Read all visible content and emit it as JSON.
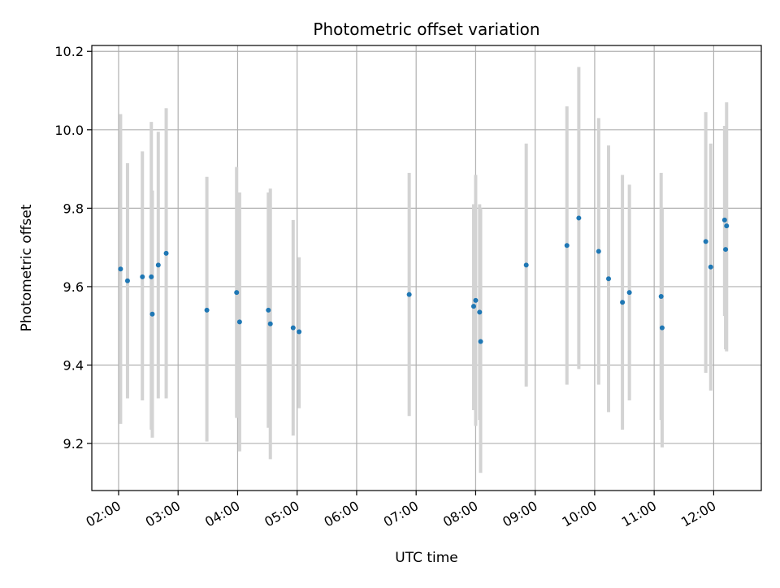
{
  "chart_data": {
    "type": "scatter",
    "title": "Photometric offset variation",
    "xlabel": "UTC time",
    "ylabel": "Photometric offset",
    "x_range": [
      "01:33",
      "12:48"
    ],
    "ylim": [
      9.08,
      10.215
    ],
    "x_ticks": [
      "02:00",
      "03:00",
      "04:00",
      "05:00",
      "06:00",
      "07:00",
      "08:00",
      "09:00",
      "10:00",
      "11:00",
      "12:00"
    ],
    "y_ticks": [
      "9.2",
      "9.4",
      "9.6",
      "9.8",
      "10.0",
      "10.2"
    ],
    "grid": true,
    "colors": {
      "point": "#1f77b4",
      "errorbar": "#d3d3d3",
      "grid": "#b0b0b0"
    },
    "points": [
      {
        "t": "02:02",
        "y": 9.645,
        "lo": 9.25,
        "hi": 10.04
      },
      {
        "t": "02:09",
        "y": 9.615,
        "lo": 9.315,
        "hi": 9.915
      },
      {
        "t": "02:24",
        "y": 9.625,
        "lo": 9.31,
        "hi": 9.945
      },
      {
        "t": "02:33",
        "y": 9.625,
        "lo": 9.235,
        "hi": 10.02
      },
      {
        "t": "02:34",
        "y": 9.53,
        "lo": 9.215,
        "hi": 9.845
      },
      {
        "t": "02:40",
        "y": 9.655,
        "lo": 9.315,
        "hi": 9.995
      },
      {
        "t": "02:48",
        "y": 9.685,
        "lo": 9.315,
        "hi": 10.055
      },
      {
        "t": "03:29",
        "y": 9.54,
        "lo": 9.205,
        "hi": 9.88
      },
      {
        "t": "03:59",
        "y": 9.585,
        "lo": 9.265,
        "hi": 9.905
      },
      {
        "t": "04:02",
        "y": 9.51,
        "lo": 9.18,
        "hi": 9.84
      },
      {
        "t": "04:31",
        "y": 9.54,
        "lo": 9.24,
        "hi": 9.84
      },
      {
        "t": "04:33",
        "y": 9.505,
        "lo": 9.16,
        "hi": 9.85
      },
      {
        "t": "04:56",
        "y": 9.495,
        "lo": 9.22,
        "hi": 9.77
      },
      {
        "t": "05:02",
        "y": 9.485,
        "lo": 9.29,
        "hi": 9.675
      },
      {
        "t": "06:53",
        "y": 9.58,
        "lo": 9.27,
        "hi": 9.89
      },
      {
        "t": "07:58",
        "y": 9.55,
        "lo": 9.285,
        "hi": 9.81
      },
      {
        "t": "08:00",
        "y": 9.565,
        "lo": 9.245,
        "hi": 9.885
      },
      {
        "t": "08:04",
        "y": 9.535,
        "lo": 9.26,
        "hi": 9.81
      },
      {
        "t": "08:05",
        "y": 9.46,
        "lo": 9.125,
        "hi": 9.8
      },
      {
        "t": "08:51",
        "y": 9.655,
        "lo": 9.345,
        "hi": 9.965
      },
      {
        "t": "09:32",
        "y": 9.705,
        "lo": 9.35,
        "hi": 10.06
      },
      {
        "t": "09:44",
        "y": 9.775,
        "lo": 9.39,
        "hi": 10.16
      },
      {
        "t": "10:04",
        "y": 9.69,
        "lo": 9.35,
        "hi": 10.03
      },
      {
        "t": "10:14",
        "y": 9.62,
        "lo": 9.28,
        "hi": 9.96
      },
      {
        "t": "10:28",
        "y": 9.56,
        "lo": 9.235,
        "hi": 9.885
      },
      {
        "t": "10:35",
        "y": 9.585,
        "lo": 9.31,
        "hi": 9.86
      },
      {
        "t": "11:07",
        "y": 9.575,
        "lo": 9.26,
        "hi": 9.89
      },
      {
        "t": "11:08",
        "y": 9.495,
        "lo": 9.19,
        "hi": 9.8
      },
      {
        "t": "11:52",
        "y": 9.715,
        "lo": 9.38,
        "hi": 10.045
      },
      {
        "t": "11:57",
        "y": 9.65,
        "lo": 9.335,
        "hi": 9.965
      },
      {
        "t": "12:11",
        "y": 9.77,
        "lo": 9.525,
        "hi": 10.01
      },
      {
        "t": "12:12",
        "y": 9.695,
        "lo": 9.44,
        "hi": 9.96
      },
      {
        "t": "12:13",
        "y": 9.755,
        "lo": 9.435,
        "hi": 10.07
      }
    ]
  }
}
